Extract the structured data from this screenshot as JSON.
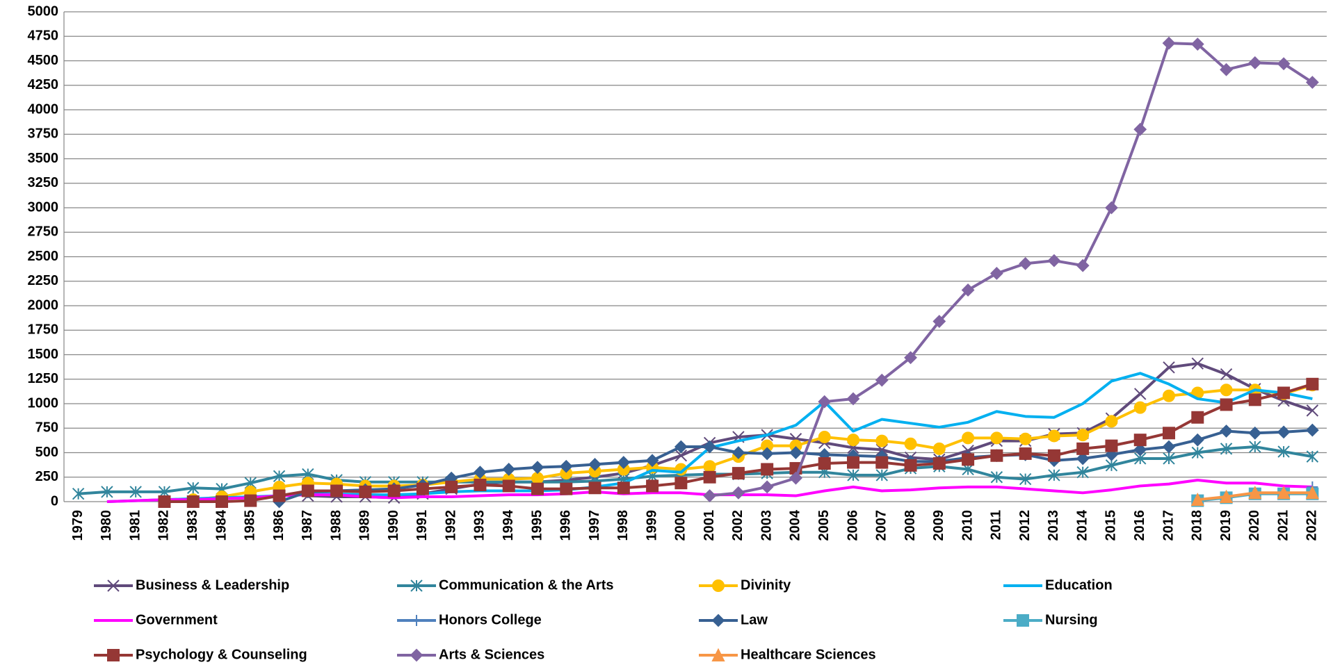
{
  "chart_data": {
    "type": "line",
    "categories": [
      "1979",
      "1980",
      "1981",
      "1982",
      "1983",
      "1984",
      "1985",
      "1986",
      "1987",
      "1988",
      "1989",
      "1990",
      "1991",
      "1992",
      "1993",
      "1994",
      "1995",
      "1996",
      "1997",
      "1998",
      "1999",
      "2000",
      "2001",
      "2002",
      "2003",
      "2004",
      "2005",
      "2006",
      "2007",
      "2008",
      "2009",
      "2010",
      "2011",
      "2012",
      "2013",
      "2014",
      "2015",
      "2016",
      "2017",
      "2018",
      "2019",
      "2020",
      "2021",
      "2022"
    ],
    "ylim": [
      0,
      5000
    ],
    "yticks": [
      0,
      250,
      500,
      750,
      1000,
      1250,
      1500,
      1750,
      2000,
      2250,
      2500,
      2750,
      3000,
      3250,
      3500,
      3750,
      4000,
      4250,
      4500,
      4750,
      5000
    ],
    "grid": true,
    "series": [
      {
        "name": "Business & Leadership",
        "color": "#604a7b",
        "marker": "x",
        "values": [
          null,
          null,
          null,
          null,
          null,
          null,
          null,
          null,
          60,
          50,
          50,
          40,
          80,
          130,
          180,
          200,
          200,
          220,
          250,
          290,
          370,
          470,
          600,
          660,
          680,
          640,
          600,
          550,
          530,
          450,
          430,
          520,
          620,
          620,
          690,
          700,
          850,
          1100,
          1370,
          1410,
          1300,
          1150,
          1030,
          930
        ]
      },
      {
        "name": "Communication & the Arts",
        "color": "#31859c",
        "marker": "star",
        "values": [
          80,
          100,
          100,
          100,
          140,
          130,
          190,
          260,
          280,
          220,
          200,
          200,
          200,
          200,
          200,
          200,
          200,
          200,
          210,
          230,
          260,
          270,
          280,
          280,
          290,
          300,
          300,
          270,
          270,
          340,
          360,
          330,
          250,
          230,
          270,
          300,
          370,
          440,
          440,
          500,
          540,
          560,
          510,
          460
        ]
      },
      {
        "name": "Divinity",
        "color": "#ffc000",
        "marker": "circle",
        "values": [
          null,
          null,
          null,
          null,
          20,
          50,
          100,
          150,
          190,
          180,
          160,
          160,
          170,
          200,
          230,
          230,
          240,
          290,
          310,
          330,
          350,
          330,
          360,
          460,
          570,
          570,
          660,
          630,
          620,
          590,
          540,
          650,
          650,
          640,
          670,
          680,
          820,
          960,
          1080,
          1110,
          1140,
          1140,
          1100,
          1190
        ]
      },
      {
        "name": "Education",
        "color": "#00b0f0",
        "marker": "none",
        "values": [
          null,
          0,
          10,
          20,
          30,
          40,
          50,
          60,
          80,
          80,
          70,
          70,
          80,
          100,
          110,
          110,
          110,
          120,
          150,
          190,
          320,
          300,
          550,
          620,
          680,
          780,
          1020,
          720,
          840,
          800,
          760,
          810,
          920,
          870,
          860,
          1000,
          1230,
          1310,
          1200,
          1050,
          1010,
          1140,
          1110,
          1050
        ]
      },
      {
        "name": "Government",
        "color": "#ff00ff",
        "marker": "none",
        "values": [
          null,
          0,
          10,
          20,
          20,
          30,
          40,
          60,
          70,
          70,
          50,
          40,
          50,
          50,
          60,
          70,
          70,
          80,
          100,
          80,
          90,
          90,
          70,
          70,
          70,
          60,
          110,
          150,
          110,
          120,
          140,
          150,
          150,
          130,
          110,
          90,
          120,
          160,
          180,
          220,
          190,
          190,
          160,
          150
        ]
      },
      {
        "name": "Honors College",
        "color": "#4f81bd",
        "marker": "plus",
        "values": [
          null,
          null,
          null,
          null,
          null,
          null,
          null,
          null,
          null,
          null,
          null,
          null,
          null,
          null,
          null,
          null,
          null,
          null,
          null,
          null,
          null,
          null,
          null,
          null,
          null,
          null,
          null,
          null,
          null,
          null,
          null,
          null,
          null,
          null,
          null,
          null,
          null,
          null,
          null,
          null,
          null,
          null,
          null,
          150
        ]
      },
      {
        "name": "Law",
        "color": "#376092",
        "marker": "diamond",
        "values": [
          null,
          null,
          null,
          null,
          null,
          null,
          null,
          0,
          100,
          110,
          120,
          130,
          170,
          240,
          300,
          330,
          350,
          360,
          380,
          400,
          420,
          560,
          560,
          500,
          490,
          500,
          480,
          470,
          460,
          410,
          410,
          450,
          470,
          480,
          420,
          440,
          480,
          530,
          560,
          630,
          720,
          700,
          710,
          730
        ]
      },
      {
        "name": "Nursing",
        "color": "#4bacc6",
        "marker": "square",
        "values": [
          null,
          null,
          null,
          null,
          null,
          null,
          null,
          null,
          null,
          null,
          null,
          null,
          null,
          null,
          null,
          null,
          null,
          null,
          null,
          null,
          null,
          null,
          null,
          null,
          null,
          null,
          null,
          null,
          null,
          null,
          null,
          null,
          null,
          null,
          null,
          null,
          null,
          null,
          null,
          10,
          40,
          80,
          80,
          80
        ]
      },
      {
        "name": "Psychology & Counseling",
        "color": "#953735",
        "marker": "square",
        "values": [
          null,
          null,
          null,
          0,
          0,
          0,
          10,
          60,
          110,
          110,
          100,
          110,
          130,
          150,
          170,
          160,
          130,
          130,
          140,
          140,
          160,
          190,
          250,
          290,
          330,
          340,
          390,
          400,
          400,
          370,
          390,
          430,
          470,
          490,
          470,
          540,
          570,
          630,
          700,
          860,
          990,
          1040,
          1110,
          1200
        ]
      },
      {
        "name": "Arts & Sciences",
        "color": "#8064a2",
        "marker": "diamond",
        "values": [
          null,
          null,
          null,
          null,
          null,
          null,
          null,
          null,
          null,
          null,
          null,
          null,
          null,
          null,
          null,
          null,
          null,
          null,
          null,
          null,
          null,
          null,
          60,
          90,
          150,
          240,
          1020,
          1050,
          1240,
          1470,
          1840,
          2160,
          2330,
          2430,
          2460,
          2410,
          3000,
          3800,
          4680,
          4670,
          4410,
          4480,
          4470,
          4280
        ]
      },
      {
        "name": "Healthcare Sciences",
        "color": "#f79646",
        "marker": "triangle",
        "values": [
          null,
          null,
          null,
          null,
          null,
          null,
          null,
          null,
          null,
          null,
          null,
          null,
          null,
          null,
          null,
          null,
          null,
          null,
          null,
          null,
          null,
          null,
          null,
          null,
          null,
          null,
          null,
          null,
          null,
          null,
          null,
          null,
          null,
          null,
          null,
          null,
          null,
          null,
          null,
          20,
          50,
          90,
          90,
          90
        ]
      }
    ]
  }
}
